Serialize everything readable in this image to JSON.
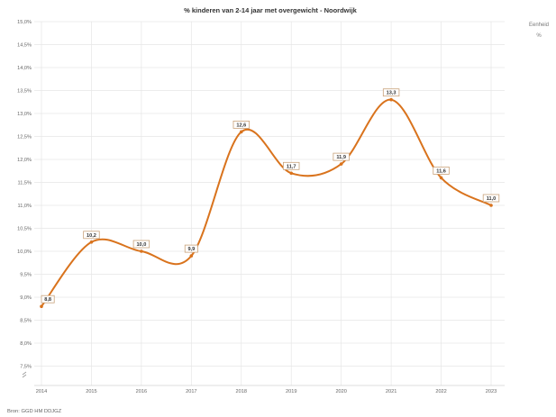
{
  "chart_data": {
    "type": "line",
    "title": "% kinderen van 2-14 jaar met overgewicht - Noordwijk",
    "x": [
      "2014",
      "2015",
      "2016",
      "2017",
      "2018",
      "2019",
      "2020",
      "2021",
      "2022",
      "2023"
    ],
    "values": [
      8.8,
      10.2,
      10.0,
      9.9,
      12.6,
      11.7,
      11.9,
      13.3,
      11.6,
      11.0
    ],
    "value_labels": [
      "8,8",
      "10,2",
      "10,0",
      "9,9",
      "12,6",
      "11,7",
      "11,9",
      "13,3",
      "11,6",
      "11,0"
    ],
    "y_ticks": [
      "15,0%",
      "14,5%",
      "14,0%",
      "13,5%",
      "13,0%",
      "12,5%",
      "12,0%",
      "11,5%",
      "11,0%",
      "10,5%",
      "10,0%",
      "9,5%",
      "9,0%",
      "8,5%",
      "8,0%",
      "7,5%"
    ],
    "ylim": [
      7.5,
      15.0
    ],
    "grid": true,
    "line_color": "#d9731d",
    "legend": {
      "title": "Eenheid",
      "unit": "%",
      "placement": "top-right"
    },
    "source": "Bron: GGD HM DDJGZ"
  }
}
